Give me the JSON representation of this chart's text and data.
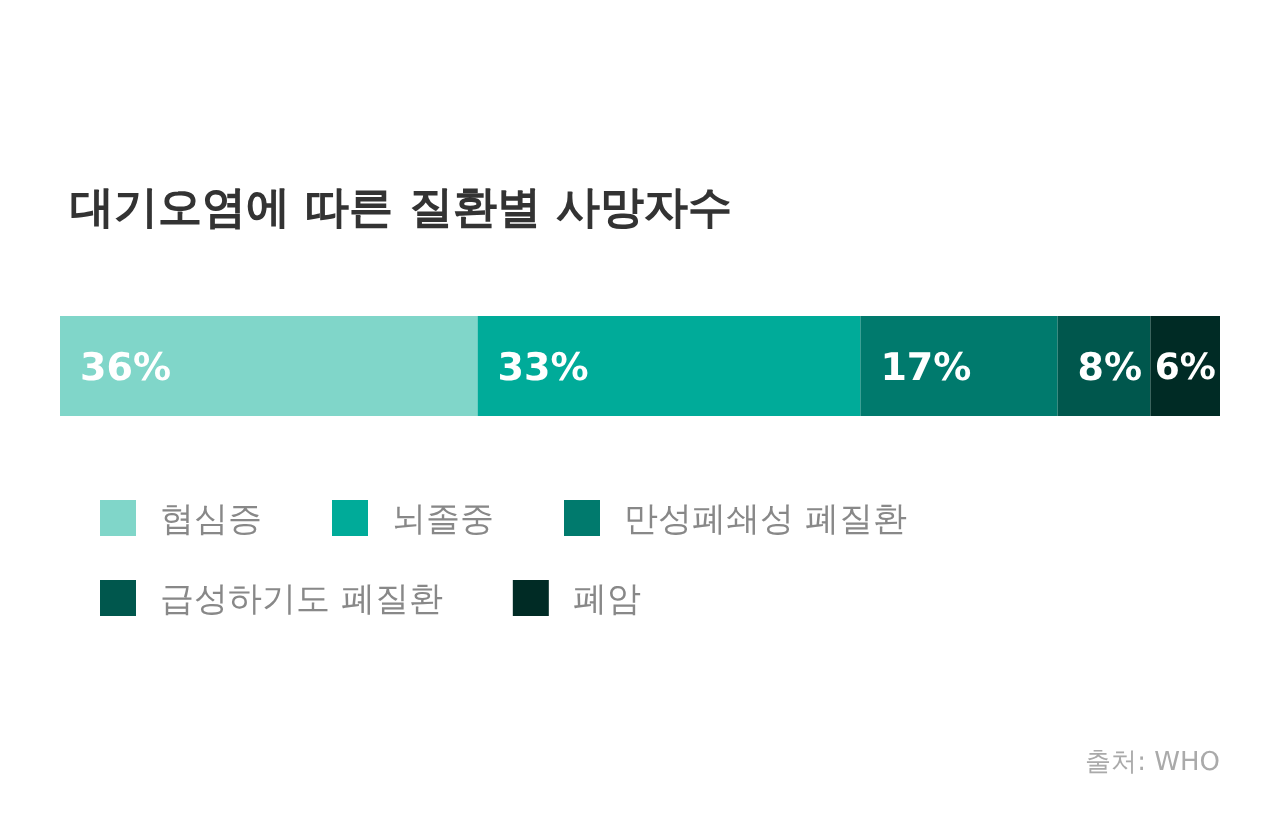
{
  "chart_data": {
    "type": "bar",
    "orientation": "horizontal",
    "stacked": true,
    "title": "대기오염에 따른 질환별 사망자수",
    "categories": [
      null
    ],
    "xlim": [
      0,
      100
    ],
    "legend": "bottom",
    "series": [
      {
        "name": "협심증",
        "color": "#80d6c9",
        "values": [
          36
        ],
        "value_labels": [
          "36%"
        ]
      },
      {
        "name": "뇌졸중",
        "color": "#00ab99",
        "values": [
          33
        ],
        "value_labels": [
          "33%"
        ]
      },
      {
        "name": "만성폐쇄성 폐질환",
        "color": "#007a6d",
        "values": [
          17
        ],
        "value_labels": [
          "17%"
        ]
      },
      {
        "name": "급성하기도 폐질환",
        "color": "#00574d",
        "values": [
          8
        ],
        "value_labels": [
          "8%"
        ]
      },
      {
        "name": "폐암",
        "color": "#002b25",
        "values": [
          6
        ],
        "value_labels": [
          "6%"
        ]
      }
    ],
    "annotations": [
      "출처: WHO"
    ]
  }
}
